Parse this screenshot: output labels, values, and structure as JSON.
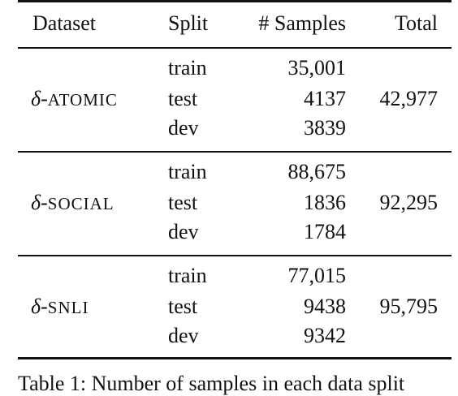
{
  "table": {
    "headers": {
      "dataset": "Dataset",
      "split": "Split",
      "samples": "# Samples",
      "total": "Total"
    },
    "groups": [
      {
        "dataset_symbol": "δ",
        "dataset_sep": "-",
        "dataset_name": "ATOMIC",
        "total": "42,977",
        "rows": [
          {
            "split": "train",
            "samples": "35,001"
          },
          {
            "split": "test",
            "samples": "4137"
          },
          {
            "split": "dev",
            "samples": "3839"
          }
        ]
      },
      {
        "dataset_symbol": "δ",
        "dataset_sep": "-",
        "dataset_name": "SOCIAL",
        "total": "92,295",
        "rows": [
          {
            "split": "train",
            "samples": "88,675"
          },
          {
            "split": "test",
            "samples": "1836"
          },
          {
            "split": "dev",
            "samples": "1784"
          }
        ]
      },
      {
        "dataset_symbol": "δ",
        "dataset_sep": "-",
        "dataset_name": "SNLI",
        "total": "95,795",
        "rows": [
          {
            "split": "train",
            "samples": "77,015"
          },
          {
            "split": "test",
            "samples": "9438"
          },
          {
            "split": "dev",
            "samples": "9342"
          }
        ]
      }
    ]
  },
  "caption": "Table 1: Number of samples in each data split"
}
